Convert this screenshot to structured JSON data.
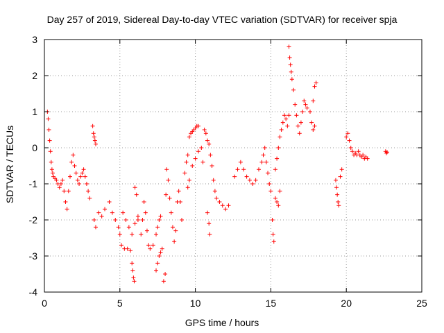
{
  "chart_data": {
    "type": "scatter",
    "title": "Day 257 of 2019, Sidereal Day-to-day VTEC variation (SDTVAR) for receiver spja",
    "xlabel": "GPS time / hours",
    "ylabel": "SDTVAR / TECUs",
    "xlim": [
      0,
      25
    ],
    "ylim": [
      -4,
      3
    ],
    "xticks": [
      0,
      5,
      10,
      15,
      20,
      25
    ],
    "yticks": [
      -4,
      -3,
      -2,
      -1,
      0,
      1,
      2,
      3
    ],
    "x_tick_labels": [
      "0",
      "5",
      "10",
      "15",
      "20",
      "25"
    ],
    "y_tick_labels": [
      "-4",
      "-3",
      "-2",
      "-1",
      "0",
      "1",
      "2",
      "3"
    ],
    "grid": true,
    "marker": "+",
    "color": "#ff0000",
    "series": [
      {
        "name": "SDTVAR",
        "points": [
          [
            0.2,
            1.0
          ],
          [
            0.25,
            0.8
          ],
          [
            0.3,
            0.5
          ],
          [
            0.35,
            0.2
          ],
          [
            0.4,
            -0.1
          ],
          [
            0.45,
            -0.4
          ],
          [
            0.5,
            -0.6
          ],
          [
            0.55,
            -0.7
          ],
          [
            0.6,
            -0.8
          ],
          [
            0.7,
            -0.85
          ],
          [
            0.8,
            -0.9
          ],
          [
            0.9,
            -1.0
          ],
          [
            1.0,
            -1.1
          ],
          [
            1.1,
            -1.0
          ],
          [
            1.2,
            -0.9
          ],
          [
            1.3,
            -1.2
          ],
          [
            1.4,
            -1.5
          ],
          [
            1.5,
            -1.7
          ],
          [
            1.6,
            -1.2
          ],
          [
            1.7,
            -0.8
          ],
          [
            1.8,
            -0.4
          ],
          [
            1.9,
            -0.2
          ],
          [
            2.0,
            -0.5
          ],
          [
            2.1,
            -0.7
          ],
          [
            2.2,
            -0.9
          ],
          [
            2.3,
            -1.0
          ],
          [
            2.4,
            -0.8
          ],
          [
            2.5,
            -0.7
          ],
          [
            2.6,
            -0.6
          ],
          [
            2.7,
            -0.8
          ],
          [
            2.8,
            -1.0
          ],
          [
            2.9,
            -1.2
          ],
          [
            3.0,
            -1.4
          ],
          [
            3.2,
            0.6
          ],
          [
            3.25,
            0.4
          ],
          [
            3.3,
            0.3
          ],
          [
            3.35,
            0.2
          ],
          [
            3.4,
            0.1
          ],
          [
            3.3,
            -2.0
          ],
          [
            3.4,
            -2.2
          ],
          [
            3.6,
            -1.8
          ],
          [
            3.8,
            -1.9
          ],
          [
            4.0,
            -1.7
          ],
          [
            4.3,
            -1.5
          ],
          [
            4.5,
            -1.8
          ],
          [
            4.7,
            -2.0
          ],
          [
            4.9,
            -2.2
          ],
          [
            5.0,
            -2.4
          ],
          [
            5.1,
            -2.7
          ],
          [
            5.3,
            -2.8
          ],
          [
            5.5,
            -2.8
          ],
          [
            5.7,
            -2.85
          ],
          [
            5.2,
            -1.8
          ],
          [
            5.4,
            -2.0
          ],
          [
            5.6,
            -2.2
          ],
          [
            5.8,
            -2.4
          ],
          [
            6.0,
            -2.1
          ],
          [
            6.2,
            -1.9
          ],
          [
            5.8,
            -3.2
          ],
          [
            5.85,
            -3.4
          ],
          [
            5.9,
            -3.6
          ],
          [
            5.95,
            -3.7
          ],
          [
            6.0,
            -1.1
          ],
          [
            6.1,
            -1.3
          ],
          [
            6.2,
            -2.0
          ],
          [
            6.4,
            -2.4
          ],
          [
            6.5,
            -2.0
          ],
          [
            6.6,
            -1.5
          ],
          [
            6.7,
            -1.8
          ],
          [
            6.8,
            -2.3
          ],
          [
            6.9,
            -2.7
          ],
          [
            7.0,
            -2.8
          ],
          [
            7.2,
            -2.7
          ],
          [
            7.4,
            -2.4
          ],
          [
            7.5,
            -2.2
          ],
          [
            7.6,
            -2.0
          ],
          [
            7.7,
            -1.9
          ],
          [
            7.4,
            -3.4
          ],
          [
            7.5,
            -3.2
          ],
          [
            7.6,
            -3.0
          ],
          [
            7.7,
            -2.9
          ],
          [
            7.8,
            -2.8
          ],
          [
            7.9,
            -3.7
          ],
          [
            8.0,
            -3.5
          ],
          [
            8.05,
            -1.3
          ],
          [
            8.1,
            -0.6
          ],
          [
            8.2,
            -0.9
          ],
          [
            8.3,
            -1.4
          ],
          [
            8.4,
            -1.8
          ],
          [
            8.5,
            -2.2
          ],
          [
            8.6,
            -2.6
          ],
          [
            8.7,
            -2.3
          ],
          [
            8.8,
            -1.5
          ],
          [
            8.9,
            -1.2
          ],
          [
            9.0,
            -1.5
          ],
          [
            9.1,
            -2.0
          ],
          [
            9.3,
            -0.7
          ],
          [
            9.4,
            -0.4
          ],
          [
            9.5,
            -0.2
          ],
          [
            9.6,
            0.3
          ],
          [
            9.7,
            0.4
          ],
          [
            9.8,
            0.45
          ],
          [
            9.9,
            0.5
          ],
          [
            10.0,
            0.55
          ],
          [
            10.1,
            0.6
          ],
          [
            10.2,
            0.6
          ],
          [
            9.5,
            -1.1
          ],
          [
            9.6,
            -0.9
          ],
          [
            9.8,
            -0.5
          ],
          [
            10.0,
            -0.3
          ],
          [
            10.2,
            -0.1
          ],
          [
            10.4,
            0.0
          ],
          [
            10.5,
            -0.4
          ],
          [
            10.6,
            0.5
          ],
          [
            10.7,
            0.4
          ],
          [
            10.8,
            0.2
          ],
          [
            10.9,
            0.1
          ],
          [
            11.0,
            -0.2
          ],
          [
            11.1,
            -0.5
          ],
          [
            11.2,
            -0.9
          ],
          [
            11.3,
            -1.2
          ],
          [
            11.4,
            -1.4
          ],
          [
            11.6,
            -1.5
          ],
          [
            11.8,
            -1.6
          ],
          [
            12.0,
            -1.7
          ],
          [
            12.2,
            -1.6
          ],
          [
            10.8,
            -1.8
          ],
          [
            10.9,
            -2.1
          ],
          [
            10.95,
            -2.4
          ],
          [
            12.6,
            -0.8
          ],
          [
            12.8,
            -0.6
          ],
          [
            13.0,
            -0.4
          ],
          [
            13.2,
            -0.6
          ],
          [
            13.4,
            -0.8
          ],
          [
            13.6,
            -0.9
          ],
          [
            13.8,
            -1.0
          ],
          [
            14.0,
            -0.9
          ],
          [
            14.2,
            -0.6
          ],
          [
            14.4,
            -0.4
          ],
          [
            14.5,
            -0.2
          ],
          [
            14.6,
            0.0
          ],
          [
            14.7,
            -0.4
          ],
          [
            14.8,
            -0.7
          ],
          [
            14.9,
            -1.0
          ],
          [
            15.0,
            -1.2
          ],
          [
            15.1,
            -2.0
          ],
          [
            15.15,
            -2.4
          ],
          [
            15.2,
            -2.6
          ],
          [
            15.3,
            -1.4
          ],
          [
            15.4,
            -1.5
          ],
          [
            15.5,
            -1.6
          ],
          [
            15.6,
            -1.2
          ],
          [
            15.3,
            -0.6
          ],
          [
            15.4,
            -0.3
          ],
          [
            15.5,
            0.0
          ],
          [
            15.6,
            0.3
          ],
          [
            15.7,
            0.5
          ],
          [
            15.8,
            0.7
          ],
          [
            15.9,
            0.9
          ],
          [
            16.0,
            0.8
          ],
          [
            16.1,
            0.6
          ],
          [
            16.2,
            0.9
          ],
          [
            16.2,
            2.8
          ],
          [
            16.25,
            2.5
          ],
          [
            16.3,
            2.3
          ],
          [
            16.35,
            2.1
          ],
          [
            16.4,
            1.9
          ],
          [
            16.5,
            1.6
          ],
          [
            16.6,
            1.2
          ],
          [
            16.7,
            0.9
          ],
          [
            16.8,
            0.6
          ],
          [
            16.9,
            0.4
          ],
          [
            17.0,
            0.7
          ],
          [
            17.1,
            1.0
          ],
          [
            17.2,
            1.3
          ],
          [
            17.3,
            1.2
          ],
          [
            17.4,
            1.1
          ],
          [
            17.6,
            1.0
          ],
          [
            17.8,
            1.3
          ],
          [
            17.9,
            1.7
          ],
          [
            18.0,
            1.8
          ],
          [
            17.7,
            0.7
          ],
          [
            17.8,
            0.5
          ],
          [
            17.9,
            0.6
          ],
          [
            19.3,
            -0.9
          ],
          [
            19.35,
            -1.1
          ],
          [
            19.4,
            -1.3
          ],
          [
            19.45,
            -1.5
          ],
          [
            19.5,
            -1.6
          ],
          [
            19.6,
            -0.8
          ],
          [
            19.7,
            -0.6
          ],
          [
            20.0,
            0.3
          ],
          [
            20.1,
            0.4
          ],
          [
            20.2,
            0.2
          ],
          [
            20.3,
            0.0
          ],
          [
            20.4,
            -0.1
          ],
          [
            20.5,
            -0.2
          ],
          [
            20.6,
            -0.15
          ],
          [
            20.7,
            -0.2
          ],
          [
            20.8,
            -0.1
          ],
          [
            20.9,
            -0.2
          ],
          [
            21.0,
            -0.25
          ],
          [
            21.1,
            -0.2
          ],
          [
            21.2,
            -0.3
          ],
          [
            21.3,
            -0.25
          ],
          [
            21.4,
            -0.3
          ],
          [
            22.6,
            -0.1
          ],
          [
            22.65,
            -0.15
          ],
          [
            22.7,
            -0.12
          ]
        ]
      }
    ]
  }
}
